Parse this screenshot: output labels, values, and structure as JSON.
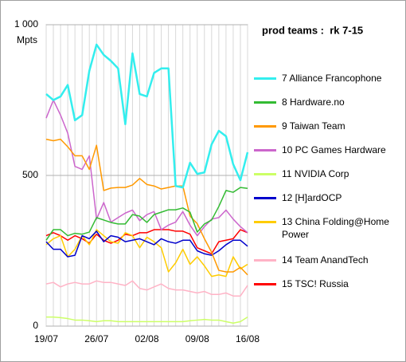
{
  "chart_data": {
    "type": "line",
    "title": "prod teams :  rk 7-15",
    "y_label": "Mpts",
    "categories": [
      "19/07",
      null,
      null,
      null,
      null,
      null,
      null,
      "26/07",
      null,
      null,
      null,
      null,
      null,
      null,
      "02/08",
      null,
      null,
      null,
      null,
      null,
      null,
      "09/08",
      null,
      null,
      null,
      null,
      null,
      null,
      "16/08"
    ],
    "ylim": [
      0,
      1000
    ],
    "yticks": [
      0,
      500,
      {
        "value": 1000,
        "label": "1 000"
      }
    ],
    "grid": true,
    "series": [
      {
        "name": "7 Alliance Francophone",
        "color": "#33eeee",
        "values": [
          770,
          750,
          762,
          800,
          683,
          700,
          847,
          934,
          900,
          880,
          855,
          670,
          905,
          770,
          762,
          840,
          855,
          855,
          465,
          460,
          542,
          505,
          510,
          603,
          648,
          630,
          537,
          484,
          577
        ]
      },
      {
        "name": "8 Hardware.no",
        "color": "#33bb33",
        "values": [
          285,
          320,
          320,
          300,
          308,
          305,
          312,
          360,
          352,
          344,
          339,
          339,
          370,
          365,
          344,
          370,
          378,
          386,
          386,
          392,
          378,
          312,
          339,
          352,
          397,
          450,
          444,
          460,
          457
        ]
      },
      {
        "name": "9 Taiwan Team",
        "color": "#ff9900",
        "values": [
          620,
          615,
          620,
          595,
          565,
          565,
          520,
          600,
          450,
          458,
          460,
          460,
          468,
          490,
          470,
          465,
          455,
          460,
          465,
          465,
          365,
          340,
          290,
          245,
          185,
          180,
          180,
          195,
          170
        ]
      },
      {
        "name": "10 PC Games Hardware",
        "color": "#cc66cc",
        "values": [
          690,
          750,
          700,
          640,
          530,
          520,
          565,
          355,
          410,
          345,
          360,
          375,
          385,
          350,
          370,
          380,
          320,
          335,
          345,
          380,
          335,
          300,
          330,
          355,
          360,
          385,
          355,
          330,
          310
        ]
      },
      {
        "name": "11 NVIDIA Corp",
        "color": "#ccff66",
        "values": [
          30,
          30,
          28,
          25,
          20,
          20,
          18,
          15,
          18,
          18,
          15,
          15,
          15,
          15,
          15,
          15,
          15,
          15,
          15,
          15,
          18,
          20,
          22,
          20,
          20,
          15,
          10,
          15,
          30
        ]
      },
      {
        "name": "12 [H]ardOCP",
        "color": "#0000cc",
        "values": [
          280,
          255,
          255,
          230,
          235,
          300,
          290,
          315,
          280,
          300,
          295,
          280,
          285,
          290,
          280,
          270,
          290,
          280,
          275,
          285,
          285,
          250,
          240,
          235,
          250,
          270,
          285,
          285,
          265
        ]
      },
      {
        "name": "13 China Folding@Home Power",
        "color": "#ffcc00",
        "values": [
          270,
          290,
          300,
          230,
          255,
          300,
          270,
          320,
          300,
          280,
          275,
          310,
          300,
          260,
          295,
          280,
          260,
          180,
          210,
          255,
          205,
          230,
          200,
          165,
          170,
          165,
          230,
          190,
          205
        ]
      },
      {
        "name": "14 Team AnandTech",
        "color": "#ffb3c6",
        "values": [
          140,
          145,
          130,
          140,
          145,
          140,
          140,
          150,
          145,
          145,
          140,
          135,
          150,
          125,
          120,
          130,
          140,
          125,
          120,
          120,
          115,
          110,
          115,
          105,
          105,
          110,
          100,
          100,
          135
        ]
      },
      {
        "name": "15 TSC! Russia",
        "color": "#ff0000",
        "values": [
          300,
          310,
          300,
          285,
          300,
          290,
          275,
          305,
          285,
          275,
          285,
          305,
          300,
          310,
          310,
          320,
          320,
          320,
          315,
          315,
          305,
          260,
          250,
          240,
          280,
          285,
          290,
          320,
          310
        ]
      }
    ]
  }
}
